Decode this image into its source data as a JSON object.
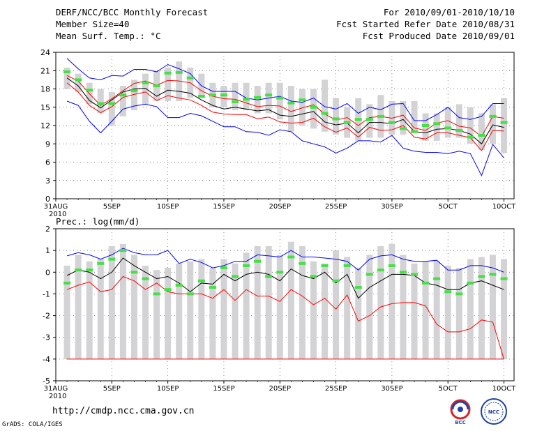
{
  "header": {
    "title": "DERF/NCC/BCC Monthly Forecast",
    "member_size": "Member Size=40",
    "variable": "Mean Surf. Temp.: °C",
    "period": "For 2010/09/01-2010/10/10",
    "started": "Fcst Started Refer Date 2010/08/31",
    "produced": "Fcst Produced Date 2010/09/01"
  },
  "footer": {
    "url": "http://cmdp.ncc.cma.gov.cn",
    "credit": "GrADS: COLA/IGES",
    "logo_bcc": "BCC",
    "logo_ncc": "NCC"
  },
  "chart_data": [
    {
      "type": "box-ensemble",
      "title": "Mean Surf. Temp.: °C",
      "ylim": [
        0,
        24
      ],
      "yticks": [
        0,
        3,
        6,
        9,
        12,
        15,
        18,
        21,
        24
      ],
      "x_tick_labels": [
        "31AUG\n2010",
        "5SEP",
        "10SEP",
        "15SEP",
        "20SEP",
        "25SEP",
        "30SEP",
        "5OCT",
        "10OCT"
      ],
      "x_tick_days": [
        0,
        5,
        10,
        15,
        20,
        25,
        30,
        35,
        40
      ],
      "days": [
        1,
        2,
        3,
        4,
        5,
        6,
        7,
        8,
        9,
        10,
        11,
        12,
        13,
        14,
        15,
        16,
        17,
        18,
        19,
        20,
        21,
        22,
        23,
        24,
        25,
        26,
        27,
        28,
        29,
        30,
        31,
        32,
        33,
        34,
        35,
        36,
        37,
        38,
        39,
        40
      ],
      "box_low": [
        18,
        17.5,
        15.5,
        14,
        12,
        13.5,
        14.5,
        15.5,
        16,
        16,
        16,
        16.5,
        16.5,
        15,
        15,
        14.5,
        14.5,
        14,
        14,
        13,
        11,
        12,
        11.5,
        11,
        10.5,
        10,
        9.5,
        10,
        10,
        10.5,
        10.5,
        11,
        9.5,
        9.5,
        10,
        10,
        9,
        8,
        9,
        7.5
      ],
      "box_high": [
        21.5,
        20.5,
        19,
        18,
        17.5,
        18.5,
        19.5,
        20.5,
        21,
        21.5,
        22.5,
        21.5,
        20.5,
        19,
        18.5,
        19,
        19,
        18.5,
        19,
        19,
        18.5,
        18,
        18,
        19.5,
        16.5,
        15,
        16.5,
        15.5,
        17,
        16,
        16,
        16,
        14,
        14,
        15,
        15.5,
        15,
        14,
        15.5,
        16.5
      ],
      "observed": [
        20.8,
        19.5,
        17.8,
        15.6,
        15.6,
        17.0,
        17.7,
        19.0,
        18.5,
        20.6,
        20.7,
        19.8,
        16.8,
        17.0,
        17.0,
        15.9,
        16.3,
        16.6,
        17.0,
        16.5,
        15.7,
        16.2,
        15.0,
        14.0,
        13.1,
        12.5,
        13.0,
        13.0,
        13.5,
        12.5,
        11.5,
        11.0,
        12.0,
        12.3,
        11.6,
        11.2,
        10.1,
        10.4,
        13.5,
        12.5
      ],
      "series": [
        {
          "name": "max",
          "color": "#0000ff",
          "values": [
            23,
            21.3,
            19.8,
            19.5,
            20.2,
            20.1,
            21.2,
            21.2,
            20.8,
            22,
            21.3,
            20.5,
            18.5,
            17.6,
            17.6,
            17.6,
            16.5,
            16.2,
            16.5,
            16.8,
            16,
            15.8,
            16.5,
            15.1,
            14.7,
            15.6,
            14,
            15,
            14.6,
            15.5,
            15.6,
            12.8,
            12.8,
            13.8,
            15,
            13.3,
            13,
            13.5,
            15.6,
            15.6
          ]
        },
        {
          "name": "mean_plus_sd",
          "color": "#ff0000",
          "values": [
            20.2,
            19.3,
            17.2,
            15.3,
            16.4,
            17.7,
            18.9,
            19.3,
            18.6,
            19.4,
            19.3,
            19,
            17.7,
            16.8,
            16.4,
            16.3,
            15.7,
            15.1,
            15.3,
            15.2,
            14.3,
            14.9,
            15.4,
            13.9,
            12.9,
            13.3,
            12,
            13.3,
            13.5,
            13.2,
            13.7,
            11.6,
            11.2,
            12.4,
            12.8,
            11.9,
            11.6,
            10.2,
            13.5,
            13.2
          ]
        },
        {
          "name": "mean",
          "color": "#000000",
          "values": [
            19.8,
            18.5,
            16.1,
            14.9,
            16.2,
            17.5,
            18,
            18.1,
            16.8,
            17.8,
            17.6,
            17.3,
            16.2,
            15.3,
            14.7,
            15,
            14.7,
            14.4,
            14.6,
            13.7,
            13.5,
            13.9,
            14.3,
            12.6,
            12.1,
            12.4,
            10.8,
            12.5,
            12.5,
            12.3,
            13,
            11,
            10.8,
            11.4,
            11.5,
            11.2,
            10.6,
            9,
            12.1,
            11.7
          ]
        },
        {
          "name": "mean_minus_sd",
          "color": "#ff0000",
          "values": [
            19,
            17.5,
            15.3,
            14.1,
            15.1,
            16.6,
            17.1,
            17.5,
            16.1,
            16.9,
            16.5,
            16.2,
            15.3,
            14.2,
            13.9,
            13.8,
            13.8,
            13.1,
            13.4,
            12.6,
            12.4,
            12.5,
            13.2,
            11.8,
            10.9,
            11.6,
            10.1,
            11.7,
            11.2,
            11.3,
            12,
            10.1,
            9.8,
            10.8,
            10.8,
            10.4,
            10,
            7.9,
            11.2,
            11.1
          ]
        },
        {
          "name": "min",
          "color": "#0000ff",
          "values": [
            16,
            15.3,
            12.7,
            10.8,
            12.7,
            14.7,
            15.2,
            15.5,
            15.1,
            13.3,
            13.3,
            14,
            13.6,
            12.7,
            11.8,
            11.8,
            11,
            10.9,
            10.4,
            11.3,
            11,
            9.5,
            9,
            8.5,
            7.5,
            8.3,
            9.5,
            9.5,
            9.3,
            10.4,
            8.3,
            7.8,
            7.6,
            7.6,
            7.4,
            7.8,
            7.4,
            3.8,
            8.9,
            6.7
          ]
        }
      ]
    },
    {
      "type": "box-ensemble",
      "title": "Prec.: log(mm/d)",
      "ylim": [
        -5,
        2
      ],
      "yticks": [
        -5,
        -4,
        -3,
        -2,
        -1,
        0,
        1,
        2
      ],
      "x_tick_labels": [
        "31AUG\n2010",
        "5SEP",
        "10SEP",
        "15SEP",
        "20SEP",
        "25SEP",
        "30SEP",
        "5OCT",
        "10OCT"
      ],
      "x_tick_days": [
        0,
        5,
        10,
        15,
        20,
        25,
        30,
        35,
        40
      ],
      "days": [
        1,
        2,
        3,
        4,
        5,
        6,
        7,
        8,
        9,
        10,
        11,
        12,
        13,
        14,
        15,
        16,
        17,
        18,
        19,
        20,
        21,
        22,
        23,
        24,
        25,
        26,
        27,
        28,
        29,
        30,
        31,
        32,
        33,
        34,
        35,
        36,
        37,
        38,
        39,
        40
      ],
      "box_low": [
        -4,
        -4,
        -4,
        -4,
        -4,
        -4,
        -4,
        -4,
        -4,
        -4,
        -4,
        -4,
        -4,
        -4,
        -4,
        -4,
        -4,
        -4,
        -4,
        -4,
        -4,
        -4,
        -4,
        -4,
        -4,
        -4,
        -4,
        -4,
        -4,
        -4,
        -4,
        -4,
        -4,
        -4,
        -4,
        -4,
        -4,
        -4,
        -4,
        -4
      ],
      "box_high": [
        0.3,
        0.8,
        0.5,
        0.6,
        1.2,
        1.3,
        0.8,
        0.3,
        0.1,
        0.2,
        0.4,
        0.5,
        0.6,
        0.2,
        0.6,
        0.4,
        0.9,
        1.2,
        1.2,
        0.8,
        1.4,
        1.2,
        0.5,
        0.4,
        1.0,
        0.7,
        0.2,
        0.8,
        1.2,
        1.3,
        0.8,
        0.4,
        0.5,
        0.5,
        0.3,
        0.2,
        0.6,
        0.7,
        0.8,
        0.6
      ],
      "observed": [
        -0.5,
        0.1,
        0.1,
        0.4,
        0.6,
        1.0,
        0.0,
        -0.3,
        -1.0,
        -0.8,
        -0.6,
        -1.0,
        -0.4,
        -0.7,
        0.2,
        -0.2,
        0.3,
        0.5,
        -0.2,
        0.0,
        0.7,
        0.4,
        -0.2,
        0.3,
        -0.4,
        0.3,
        -0.7,
        -0.1,
        0.1,
        0.3,
        0.0,
        -0.1,
        -0.5,
        -0.3,
        -0.9,
        -1.0,
        -0.5,
        -0.2,
        -0.1,
        -0.3
      ],
      "series": [
        {
          "name": "max",
          "color": "#0000ff",
          "values": [
            0.75,
            0.9,
            0.8,
            0.6,
            0.8,
            1.1,
            0.9,
            0.8,
            0.8,
            1.0,
            0.4,
            0.6,
            0.45,
            0.2,
            0.3,
            0.5,
            0.5,
            0.8,
            0.75,
            0.7,
            1.0,
            0.7,
            0.7,
            0.65,
            0.6,
            0.5,
            0.1,
            0.6,
            0.75,
            0.8,
            0.6,
            0.5,
            0.5,
            0.55,
            0.1,
            0.1,
            0.3,
            0.3,
            0.2,
            0.0
          ]
        },
        {
          "name": "mean",
          "color": "#000000",
          "values": [
            -0.15,
            0.1,
            0.0,
            -0.3,
            0.0,
            0.65,
            0.3,
            0.0,
            -0.3,
            -0.2,
            -0.5,
            -0.9,
            -0.5,
            -0.55,
            -0.1,
            -0.4,
            -0.1,
            0.0,
            -0.1,
            -0.4,
            0.15,
            -0.15,
            -0.3,
            0.0,
            -0.5,
            -0.1,
            -1.2,
            -0.7,
            -0.4,
            -0.1,
            -0.1,
            -0.15,
            -0.5,
            -0.6,
            -0.8,
            -0.8,
            -0.5,
            -0.4,
            -0.6,
            -0.8
          ]
        },
        {
          "name": "mean_minus_sd",
          "color": "#ff0000",
          "values": [
            -0.8,
            -0.6,
            -0.45,
            -0.9,
            -0.8,
            -0.2,
            -0.4,
            -0.8,
            -0.5,
            -0.9,
            -1.0,
            -1.0,
            -1.0,
            -1.2,
            -0.8,
            -1.3,
            -0.8,
            -1.1,
            -1.1,
            -1.35,
            -0.8,
            -1.1,
            -1.5,
            -1.2,
            -1.7,
            -1.05,
            -2.25,
            -2.0,
            -1.6,
            -1.45,
            -1.4,
            -1.4,
            -1.55,
            -2.4,
            -2.75,
            -2.75,
            -2.6,
            -2.2,
            -2.3,
            -4.0
          ]
        },
        {
          "name": "min",
          "color": "#ff0000",
          "values": [
            -4,
            -4,
            -4,
            -4,
            -4,
            -4,
            -4,
            -4,
            -4,
            -4,
            -4,
            -4,
            -4,
            -4,
            -4,
            -4,
            -4,
            -4,
            -4,
            -4,
            -4,
            -4,
            -4,
            -4,
            -4,
            -4,
            -4,
            -4,
            -4,
            -4,
            -4,
            -4,
            -4,
            -4,
            -4,
            -4,
            -4,
            -4,
            -4,
            -4
          ]
        }
      ]
    }
  ]
}
